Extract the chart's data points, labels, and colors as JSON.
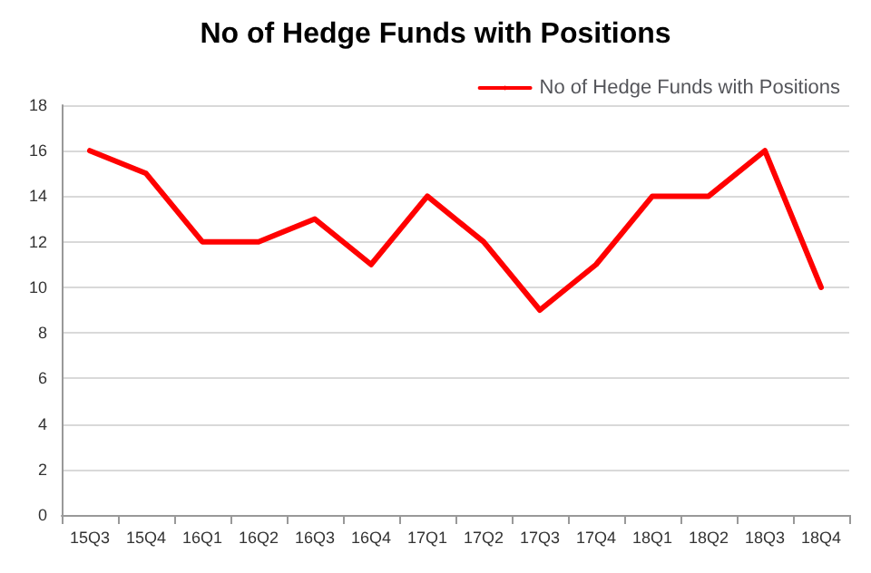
{
  "chart_data": {
    "type": "line",
    "title": "No of Hedge Funds with Positions",
    "categories": [
      "15Q3",
      "15Q4",
      "16Q1",
      "16Q2",
      "16Q3",
      "16Q4",
      "17Q1",
      "17Q2",
      "17Q3",
      "17Q4",
      "18Q1",
      "18Q2",
      "18Q3",
      "18Q4"
    ],
    "series": [
      {
        "name": "No of Hedge Funds with Positions",
        "color": "#ff0000",
        "values": [
          16,
          15,
          12,
          12,
          13,
          11,
          14,
          12,
          9,
          11,
          14,
          14,
          16,
          10
        ]
      }
    ],
    "ylim": [
      0,
      18
    ],
    "yticks": [
      0,
      2,
      4,
      6,
      8,
      10,
      12,
      14,
      16,
      18
    ],
    "grid": "y",
    "legend": "top right",
    "marker": "none",
    "line_style": "solid"
  }
}
